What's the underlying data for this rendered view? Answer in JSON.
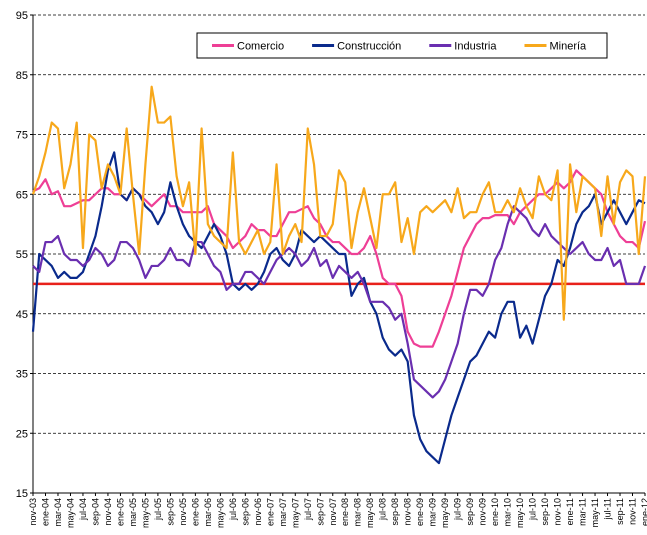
{
  "chart_data": {
    "type": "line",
    "categories": [
      "nov-03",
      null,
      "ene-04",
      null,
      "mar-04",
      null,
      "may-04",
      null,
      "jul-04",
      null,
      "sep-04",
      null,
      "nov-04",
      null,
      "ene-05",
      null,
      "mar-05",
      null,
      "may-05",
      null,
      "jul-05",
      null,
      "sep-05",
      null,
      "nov-05",
      null,
      "ene-06",
      null,
      "mar-06",
      null,
      "may-06",
      null,
      "jul-06",
      null,
      "sep-06",
      null,
      "nov-06",
      null,
      "ene-07",
      null,
      "mar-07",
      null,
      "may-07",
      null,
      "jul-07",
      null,
      "sep-07",
      null,
      "nov-07",
      null,
      "ene-08",
      null,
      "mar-08",
      null,
      "may-08",
      null,
      "jul-08",
      null,
      "sep-08",
      null,
      "nov-08",
      null,
      "ene-09",
      null,
      "mar-09",
      null,
      "may-09",
      null,
      "jul-09",
      null,
      "sep-09",
      null,
      "nov-09",
      null,
      "ene-10",
      null,
      "mar-10",
      null,
      "may-10",
      null,
      "jul-10",
      null,
      "sep-10",
      null,
      "nov-10",
      null,
      "ene-11",
      null,
      "mar-11",
      null,
      "may-11",
      null,
      "jul-11",
      null,
      "sep-11",
      null,
      "nov-11",
      null,
      "ene-12"
    ],
    "series": [
      {
        "name": "Comercio",
        "color": "#ee3f96",
        "values": [
          65.5,
          66,
          67.5,
          65,
          65.5,
          63,
          63,
          63.5,
          64,
          64,
          65,
          66,
          66,
          65,
          65,
          64,
          66,
          65,
          64,
          63,
          64,
          65,
          63,
          63,
          62,
          62,
          62,
          62,
          63,
          60,
          59,
          58,
          56,
          57,
          58,
          60,
          59,
          59,
          58,
          58,
          60,
          62,
          62,
          62.5,
          63,
          61,
          60,
          58,
          57,
          57,
          56,
          55,
          55,
          56,
          58,
          55,
          51,
          50,
          50,
          48,
          42,
          40,
          39.5,
          39.5,
          39.5,
          42,
          45,
          48,
          52,
          56,
          58,
          60,
          61,
          61,
          61.5,
          61.5,
          61.5,
          60,
          62,
          63,
          64,
          65,
          65,
          66,
          67,
          66,
          67,
          69,
          68,
          67,
          66,
          65,
          62,
          60,
          58,
          57,
          57,
          56,
          60.5
        ]
      },
      {
        "name": "Construcción",
        "color": "#0a2a8c",
        "values": [
          42,
          55,
          54,
          53,
          51,
          52,
          51,
          51,
          52,
          55,
          58,
          63,
          69,
          72,
          65,
          64,
          66,
          65,
          63,
          62,
          60,
          62,
          67,
          63,
          60,
          58,
          57,
          56,
          58,
          60,
          58,
          55,
          50,
          49,
          50,
          49,
          50,
          52,
          55,
          56,
          54,
          53,
          55,
          59,
          58,
          57,
          58,
          57,
          56,
          55,
          55,
          48,
          50,
          51,
          47,
          45,
          41,
          39,
          38,
          39,
          37,
          28,
          24,
          22,
          21,
          20,
          24,
          28,
          31,
          34,
          37,
          38,
          40,
          42,
          41,
          45,
          47,
          47,
          41,
          43,
          40,
          44,
          48,
          50,
          54,
          53,
          56,
          60,
          62,
          63,
          65,
          60,
          62,
          64,
          62,
          60,
          62,
          64,
          63.5
        ]
      },
      {
        "name": "Industria",
        "color": "#6a2fb0",
        "values": [
          53,
          52,
          57,
          57,
          58,
          55,
          54,
          54,
          53,
          54,
          56,
          55,
          53,
          54,
          57,
          57,
          56,
          54,
          51,
          53,
          53,
          54,
          56,
          54,
          54,
          53,
          57,
          57,
          55,
          53,
          52,
          49,
          50,
          50,
          52,
          52,
          51,
          50,
          52,
          54,
          55,
          56,
          55,
          53,
          54,
          56,
          53,
          54,
          51,
          53,
          52,
          51,
          52,
          50,
          47,
          47,
          47,
          46,
          44,
          45,
          40,
          34,
          33,
          32,
          31,
          32,
          34,
          37,
          40,
          45,
          49,
          49,
          48,
          50,
          54,
          56,
          60,
          63,
          62,
          61,
          59,
          58,
          60,
          58,
          57,
          56,
          55,
          56,
          57,
          55,
          54,
          54,
          56,
          53,
          54,
          50,
          50,
          50,
          53
        ]
      },
      {
        "name": "Minería",
        "color": "#f7a81b",
        "values": [
          65,
          68,
          72,
          77,
          76,
          66,
          70,
          77,
          56,
          75,
          74,
          66,
          70,
          68,
          65,
          76,
          65,
          55,
          70,
          83,
          77,
          77,
          78,
          68,
          63,
          67,
          55,
          76,
          60,
          58,
          57,
          56,
          72,
          57,
          55,
          57,
          59,
          55,
          57,
          70,
          55,
          58,
          60,
          57,
          76,
          70,
          58,
          58,
          60,
          69,
          67,
          56,
          62,
          66,
          61,
          56,
          65,
          65,
          67,
          57,
          61,
          55,
          62,
          63,
          62,
          63,
          64,
          62,
          66,
          61,
          62,
          62,
          65,
          67,
          62,
          62,
          64,
          62,
          66,
          63,
          61,
          68,
          65,
          64,
          69,
          44,
          70,
          62,
          68,
          67,
          66,
          58,
          68,
          60,
          67,
          69,
          68,
          55,
          68
        ]
      }
    ],
    "ylim": [
      15,
      95
    ],
    "yticks": [
      15,
      25,
      35,
      45,
      55,
      65,
      75,
      85,
      95
    ],
    "grid": true,
    "reference_line": {
      "value": 50,
      "color": "#e8211b"
    },
    "legend": "top"
  }
}
